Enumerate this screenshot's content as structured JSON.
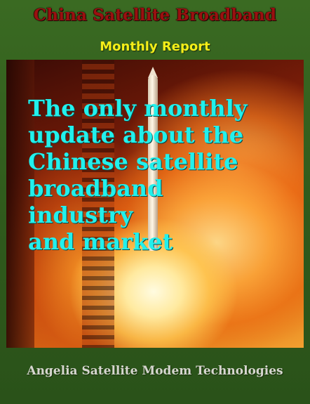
{
  "cover": {
    "title": "China Satellite Broadband",
    "subtitle": "Monthly Report",
    "headline_lines": [
      "The only monthly",
      "update about the",
      "Chinese satellite",
      "broadband",
      "industry",
      "and market"
    ],
    "footer": "Angelia Satellite Modem Technologies"
  },
  "colors": {
    "background": "#2f5a1c",
    "title": "#9a1010",
    "subtitle": "#f4ee18",
    "headline": "#22f0ec",
    "footer": "#d6d6cf"
  }
}
